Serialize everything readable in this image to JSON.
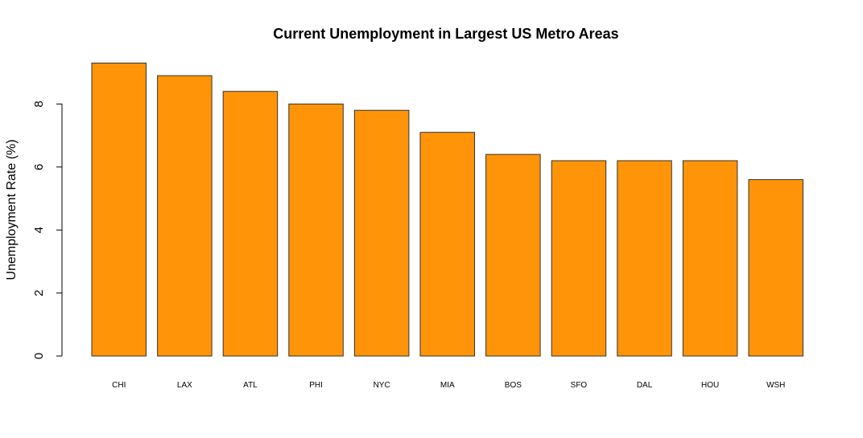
{
  "chart_data": {
    "type": "bar",
    "title": "Current Unemployment in Largest US Metro Areas",
    "xlabel": "",
    "ylabel": "Unemployment Rate (%)",
    "categories": [
      "CHI",
      "LAX",
      "ATL",
      "PHI",
      "NYC",
      "MIA",
      "BOS",
      "SFO",
      "DAL",
      "HOU",
      "WSH"
    ],
    "values": [
      9.3,
      8.9,
      8.4,
      8.0,
      7.8,
      7.1,
      6.4,
      6.2,
      6.2,
      6.2,
      5.6
    ],
    "ylim": [
      0,
      9.3
    ],
    "yticks": [
      0,
      2,
      4,
      6,
      8
    ],
    "bar_color": "#FF9408",
    "grid": false,
    "legend": "none"
  }
}
